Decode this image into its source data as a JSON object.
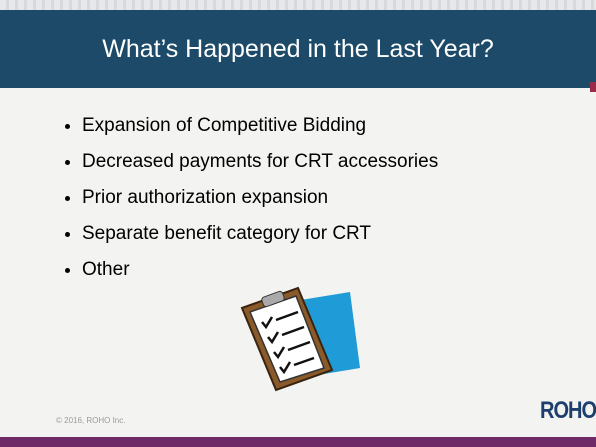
{
  "header": {
    "title": "What’s Happened in the Last Year?"
  },
  "bullets": [
    "Expansion of Competitive Bidding",
    "Decreased payments for CRT accessories",
    "Prior authorization expansion",
    "Separate benefit category for CRT",
    "Other"
  ],
  "footer": {
    "copyright": "© 2016, ROHO Inc.",
    "logo": "ROHO"
  }
}
